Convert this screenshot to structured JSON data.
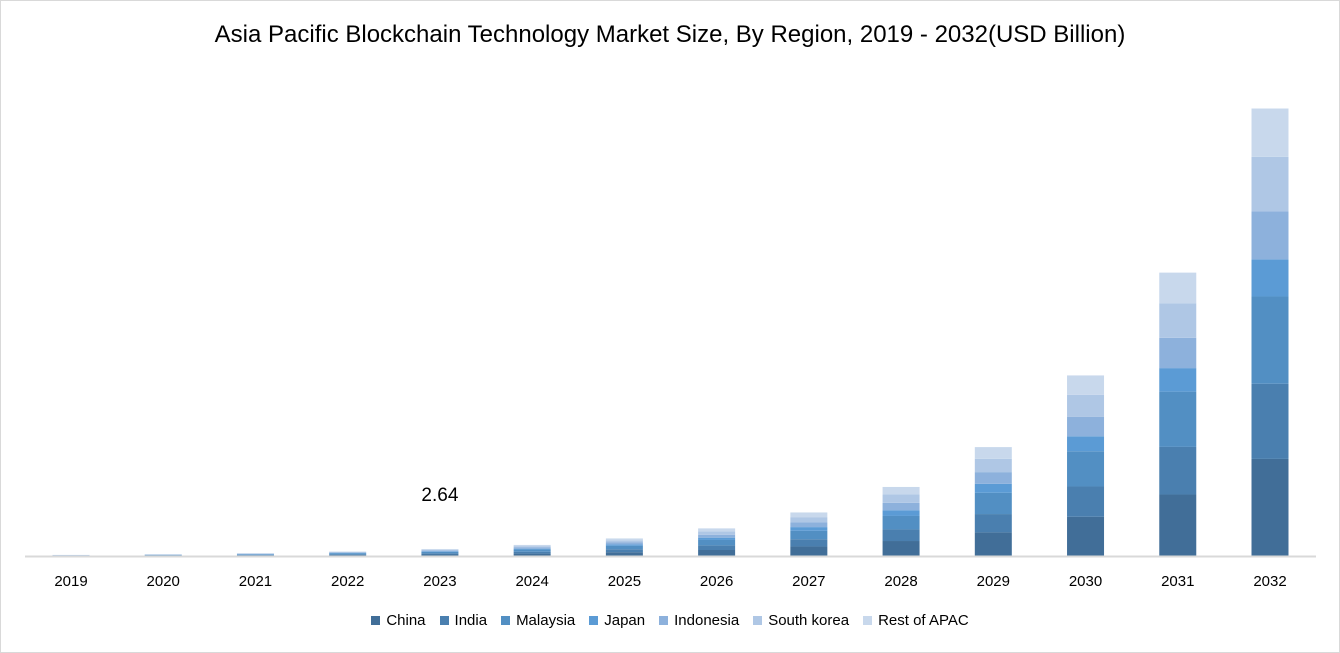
{
  "chart_data": {
    "type": "bar",
    "stacked": true,
    "title": "Asia Pacific Blockchain Technology Market Size, By Region, 2019 - 2032(USD Billion)",
    "xlabel": "",
    "ylabel": "",
    "ylim": [
      0,
      180
    ],
    "grid": false,
    "legend_position": "bottom",
    "categories": [
      "2019",
      "2020",
      "2021",
      "2022",
      "2023",
      "2024",
      "2025",
      "2026",
      "2027",
      "2028",
      "2029",
      "2030",
      "2031",
      "2032"
    ],
    "series": [
      {
        "name": "China",
        "color": "#416E98",
        "values": [
          0.09,
          0.15,
          0.23,
          0.36,
          0.57,
          0.9,
          1.43,
          2.26,
          3.56,
          5.64,
          8.9,
          14.76,
          23.15,
          36.56
        ]
      },
      {
        "name": "India",
        "color": "#4A7FAF",
        "values": [
          0.07,
          0.11,
          0.18,
          0.28,
          0.44,
          0.7,
          1.11,
          1.75,
          2.76,
          4.37,
          6.89,
          11.42,
          17.93,
          28.31
        ]
      },
      {
        "name": "Malaysia",
        "color": "#528FC3",
        "values": [
          0.08,
          0.13,
          0.21,
          0.33,
          0.52,
          0.81,
          1.29,
          2.03,
          3.2,
          5.07,
          8.0,
          13.26,
          20.81,
          32.86
        ]
      },
      {
        "name": "Japan",
        "color": "#5B9BD5",
        "values": [
          0.03,
          0.06,
          0.09,
          0.14,
          0.22,
          0.35,
          0.55,
          0.86,
          1.36,
          2.16,
          3.4,
          5.64,
          8.86,
          13.99
        ]
      },
      {
        "name": "Indonesia",
        "color": "#8DB1DC",
        "values": [
          0.04,
          0.07,
          0.11,
          0.18,
          0.28,
          0.45,
          0.71,
          1.11,
          1.75,
          2.78,
          4.39,
          7.28,
          11.42,
          18.03
        ]
      },
      {
        "name": "South korea",
        "color": "#AFC7E5",
        "values": [
          0.05,
          0.08,
          0.13,
          0.2,
          0.32,
          0.51,
          0.81,
          1.27,
          2.0,
          3.17,
          5.0,
          8.3,
          13.02,
          20.56
        ]
      },
      {
        "name": "Rest of APAC",
        "color": "#C8D8EC",
        "values": [
          0.05,
          0.07,
          0.11,
          0.18,
          0.29,
          0.45,
          0.71,
          1.12,
          1.77,
          2.81,
          4.43,
          7.34,
          11.52,
          18.2
        ]
      }
    ],
    "annotations": [
      {
        "category": "2023",
        "text": "2.64"
      }
    ]
  }
}
